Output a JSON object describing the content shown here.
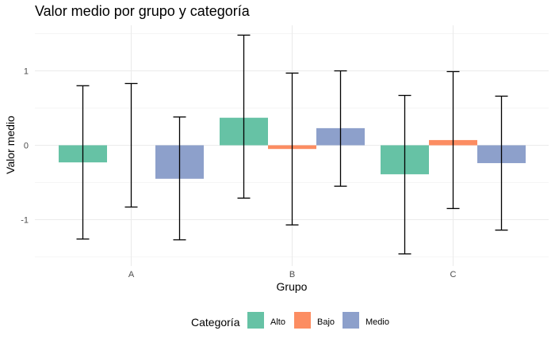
{
  "chart_data": {
    "type": "bar",
    "title": "Valor medio por grupo y categoría",
    "xlabel": "Grupo",
    "ylabel": "Valor medio",
    "categories": [
      "A",
      "B",
      "C"
    ],
    "ylim": [
      -1.55,
      1.55
    ],
    "yticks": [
      -1,
      0,
      1
    ],
    "ytick_labels": [
      "-1",
      "0",
      "1"
    ],
    "grid": true,
    "legend_placement": "bottom",
    "legend_title": "Categoría",
    "series": [
      {
        "name": "Alto",
        "color": "#66c2a5",
        "values": [
          -0.23,
          0.37,
          -0.39
        ],
        "error_low": [
          -1.26,
          -0.71,
          -1.46
        ],
        "error_high": [
          0.8,
          1.48,
          0.67
        ]
      },
      {
        "name": "Bajo",
        "color": "#fc8d62",
        "values": [
          0.0,
          -0.05,
          0.07
        ],
        "error_low": [
          -0.83,
          -1.07,
          -0.85
        ],
        "error_high": [
          0.83,
          0.97,
          0.99
        ]
      },
      {
        "name": "Medio",
        "color": "#8da0cb",
        "values": [
          -0.45,
          0.23,
          -0.24
        ],
        "error_low": [
          -1.27,
          -0.55,
          -1.14
        ],
        "error_high": [
          0.38,
          1.0,
          0.66
        ]
      }
    ]
  }
}
